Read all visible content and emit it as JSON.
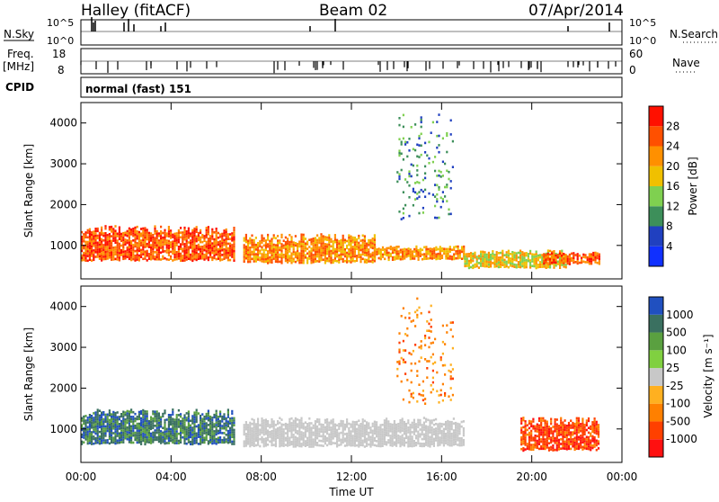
{
  "header": {
    "station": "Halley (fitACF)",
    "beam": "Beam 02",
    "date": "07/Apr/2014"
  },
  "strips": {
    "sky_label": "N.Sky",
    "sky_ticks": [
      "10^5",
      "10^0"
    ],
    "search_label": "N.Search",
    "search_ticks": [
      "10^5",
      "10^0"
    ],
    "freq_label_1": "Freq.",
    "freq_label_2": "[MHz]",
    "freq_ticks": [
      "18",
      "8"
    ],
    "nave_label": "Nave",
    "nave_ticks": [
      "60",
      "0"
    ],
    "cpid_label": "CPID",
    "cpid_value": "normal (fast) 151"
  },
  "colors": {
    "power_scale": [
      "#1030ff",
      "#2040c0",
      "#3d8f5a",
      "#7fd050",
      "#f0c000",
      "#ff9000",
      "#ff5000",
      "#ff1000"
    ],
    "velocity_scale": [
      "#2050c0",
      "#3a7060",
      "#5aa040",
      "#80d040",
      "#c8c8c8",
      "#ffb020",
      "#ff8000",
      "#ff4000",
      "#ff1010"
    ],
    "ground_scatter": "#c8c8c8"
  },
  "chart_data": [
    {
      "type": "heatmap",
      "title": "Power",
      "xlabel": "",
      "ylabel": "Slant Range [km]",
      "x_ticks": [
        "00:00",
        "04:00",
        "08:00",
        "12:00",
        "16:00",
        "20:00",
        "00:00"
      ],
      "y_ticks": [
        1000,
        2000,
        3000,
        4000
      ],
      "xlim": [
        0,
        24
      ],
      "ylim": [
        180,
        4500
      ],
      "colorbar": {
        "label": "Power [dB]",
        "ticks": [
          "4",
          "8",
          "12",
          "16",
          "20",
          "24",
          "28"
        ],
        "range": [
          0,
          30
        ]
      },
      "features": [
        {
          "start_h": 0.0,
          "end_h": 6.8,
          "range_km": [
            600,
            1500
          ],
          "power_db": 26
        },
        {
          "start_h": 7.2,
          "end_h": 13.0,
          "range_km": [
            550,
            1300
          ],
          "power_db": 20
        },
        {
          "start_h": 13.0,
          "end_h": 17.0,
          "range_km": [
            650,
            1000
          ],
          "power_db": 22
        },
        {
          "start_h": 17.0,
          "end_h": 21.5,
          "range_km": [
            450,
            900
          ],
          "power_db": 18
        },
        {
          "start_h": 20.5,
          "end_h": 23.0,
          "range_km": [
            550,
            850
          ],
          "power_db": 26
        },
        {
          "start_h": 14.0,
          "end_h": 16.5,
          "range_km": [
            1500,
            4300
          ],
          "power_db": 8
        }
      ]
    },
    {
      "type": "heatmap",
      "title": "Velocity",
      "xlabel": "Time UT",
      "ylabel": "Slant Range [km]",
      "x_ticks": [
        "00:00",
        "04:00",
        "08:00",
        "12:00",
        "16:00",
        "20:00",
        "00:00"
      ],
      "y_ticks": [
        1000,
        2000,
        3000,
        4000
      ],
      "xlim": [
        0,
        24
      ],
      "ylim": [
        180,
        4500
      ],
      "colorbar": {
        "label": "Velocity [m s⁻¹]",
        "ticks": [
          "1000",
          "500",
          "100",
          "25",
          "-25",
          "-100",
          "-500",
          "-1000"
        ]
      },
      "features": [
        {
          "start_h": 0.0,
          "end_h": 6.8,
          "range_km": [
            600,
            1500
          ],
          "velocity_ms": 300
        },
        {
          "start_h": 7.2,
          "end_h": 17.0,
          "range_km": [
            550,
            1300
          ],
          "velocity_ms": 0
        },
        {
          "start_h": 14.0,
          "end_h": 16.5,
          "range_km": [
            1500,
            4300
          ],
          "velocity_ms": -200
        },
        {
          "start_h": 19.5,
          "end_h": 23.0,
          "range_km": [
            450,
            1300
          ],
          "velocity_ms": -400
        }
      ]
    }
  ]
}
